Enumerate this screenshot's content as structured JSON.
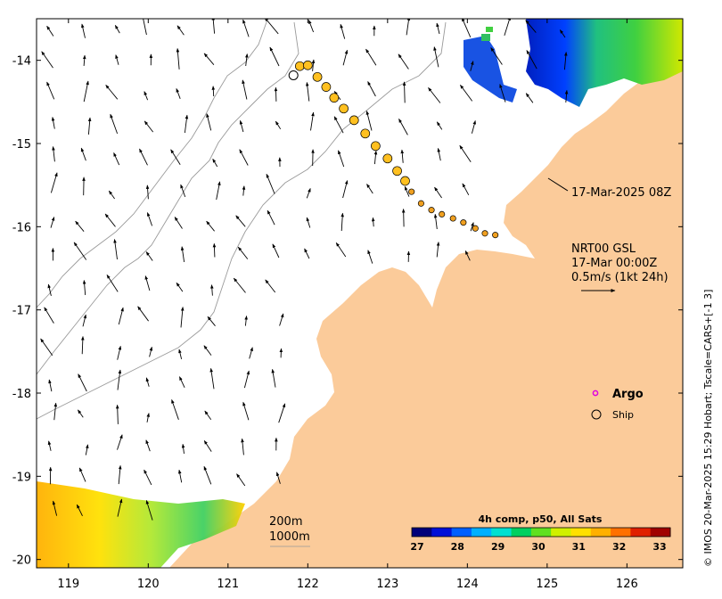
{
  "map": {
    "lon_range": [
      118.6,
      126.7
    ],
    "lat_range": [
      -20.1,
      -13.5
    ],
    "lon_ticks": [
      119,
      120,
      121,
      122,
      123,
      124,
      125,
      126
    ],
    "lat_ticks": [
      -14,
      -15,
      -16,
      -17,
      -18,
      -19,
      -20
    ],
    "land_color": "#FBCB9A",
    "timestamp_label": "17-Mar-2025 08Z",
    "product_title": "NRT00 GSL",
    "product_time": "17-Mar 00:00Z",
    "vector_scale": "0.5m/s (1kt 24h)",
    "depth_contours": [
      "200m",
      "1000m"
    ],
    "side_note": "© IMOS 20-Mar-2025 15:29 Hobart; Tscale=CARS+[-1 3]",
    "legend": {
      "argo": "Argo",
      "ship": "Ship"
    },
    "colorbar": {
      "title": "4h comp, p50, All Sats",
      "ticks": [
        "27",
        "28",
        "29",
        "30",
        "31",
        "32",
        "33"
      ],
      "colors": [
        "#00007a",
        "#0010d8",
        "#0060ff",
        "#00b0ff",
        "#00e0d0",
        "#00d060",
        "#60e020",
        "#d0f000",
        "#ffe000",
        "#ffb000",
        "#ff7000",
        "#e02000",
        "#a00000"
      ]
    },
    "ship_track": [
      [
        121.82,
        -14.18
      ],
      [
        121.9,
        -14.07
      ],
      [
        122.0,
        -14.06
      ],
      [
        122.12,
        -14.2
      ],
      [
        122.23,
        -14.32
      ],
      [
        122.33,
        -14.45
      ],
      [
        122.45,
        -14.58
      ],
      [
        122.58,
        -14.72
      ],
      [
        122.72,
        -14.88
      ],
      [
        122.85,
        -15.03
      ],
      [
        123.0,
        -15.18
      ],
      [
        123.12,
        -15.33
      ],
      [
        123.22,
        -15.45
      ],
      [
        123.3,
        -15.58
      ],
      [
        123.42,
        -15.72
      ],
      [
        123.55,
        -15.8
      ],
      [
        123.68,
        -15.85
      ],
      [
        123.82,
        -15.9
      ],
      [
        123.95,
        -15.95
      ],
      [
        124.1,
        -16.02
      ],
      [
        124.22,
        -16.08
      ],
      [
        124.35,
        -16.1
      ]
    ]
  }
}
